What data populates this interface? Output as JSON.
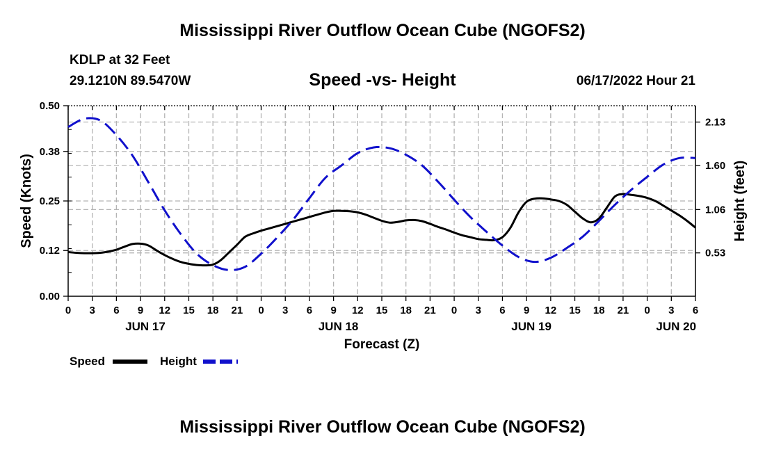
{
  "page": {
    "title": "Mississippi River Outflow Ocean Cube (NGOFS2)",
    "footer_title": "Mississippi River Outflow Ocean Cube (NGOFS2)",
    "station": "KDLP at 32 Feet",
    "coords": "29.1210N  89.5470W",
    "datetime": "06/17/2022 Hour 21"
  },
  "colors": {
    "speed": "#000000",
    "height": "#1010cc",
    "grid": "#b4b4b4"
  },
  "chart_data": {
    "type": "line",
    "title": "Speed -vs- Height",
    "xlabel": "Forecast (Z)",
    "ylabel_left": "Speed (Knots)",
    "ylabel_right": "Height (feet)",
    "x_range": [
      0,
      78
    ],
    "y_left_range": [
      0,
      0.5
    ],
    "y_right_range": [
      0,
      2.33
    ],
    "y_left_ticks": [
      0.0,
      0.12,
      0.25,
      0.38,
      0.5
    ],
    "y_left_tick_labels": [
      "0.00",
      "0.12",
      "0.25",
      "0.38",
      "0.50"
    ],
    "y_right_ticks": [
      0.53,
      1.06,
      1.6,
      2.13
    ],
    "y_right_tick_labels": [
      "0.53",
      "1.06",
      "1.60",
      "2.13"
    ],
    "x_ticks": [
      0,
      3,
      6,
      9,
      12,
      15,
      18,
      21,
      24,
      27,
      30,
      33,
      36,
      39,
      42,
      45,
      48,
      51,
      54,
      57,
      60,
      63,
      66,
      69,
      72,
      75,
      78
    ],
    "x_tick_labels": [
      "0",
      "3",
      "6",
      "9",
      "12",
      "15",
      "18",
      "21",
      "0",
      "3",
      "6",
      "9",
      "12",
      "15",
      "18",
      "21",
      "0",
      "3",
      "6",
      "9",
      "12",
      "15",
      "18",
      "21",
      "0",
      "3",
      "6"
    ],
    "day_labels": [
      {
        "x": 9.6,
        "label": "JUN 17"
      },
      {
        "x": 33.6,
        "label": "JUN 18"
      },
      {
        "x": 57.6,
        "label": "JUN 19"
      },
      {
        "x": 75.6,
        "label": "JUN 20"
      }
    ],
    "series": [
      {
        "name": "Speed",
        "axis": "left",
        "style": "solid",
        "x": [
          0,
          1,
          2,
          3,
          4,
          5,
          6,
          7,
          8,
          9,
          10,
          11,
          12,
          13,
          14,
          15,
          16,
          17,
          18,
          19,
          20,
          21,
          22,
          23,
          24,
          25,
          26,
          27,
          28,
          29,
          30,
          31,
          32,
          33,
          34,
          35,
          36,
          37,
          38,
          39,
          40,
          41,
          42,
          43,
          44,
          45,
          46,
          47,
          48,
          49,
          50,
          51,
          52,
          53,
          54,
          55,
          56,
          57,
          58,
          59,
          60,
          61,
          62,
          63,
          64,
          65,
          66,
          67,
          68,
          69,
          70,
          71,
          72,
          73,
          74,
          75,
          76,
          77,
          78
        ],
        "values": [
          0.116,
          0.114,
          0.113,
          0.113,
          0.114,
          0.117,
          0.122,
          0.13,
          0.137,
          0.138,
          0.133,
          0.12,
          0.108,
          0.098,
          0.09,
          0.085,
          0.082,
          0.081,
          0.083,
          0.095,
          0.115,
          0.135,
          0.156,
          0.165,
          0.172,
          0.178,
          0.184,
          0.19,
          0.196,
          0.202,
          0.208,
          0.214,
          0.22,
          0.224,
          0.224,
          0.223,
          0.22,
          0.214,
          0.206,
          0.198,
          0.193,
          0.195,
          0.199,
          0.2,
          0.197,
          0.19,
          0.182,
          0.175,
          0.167,
          0.16,
          0.155,
          0.15,
          0.148,
          0.147,
          0.155,
          0.18,
          0.22,
          0.248,
          0.256,
          0.257,
          0.254,
          0.25,
          0.24,
          0.222,
          0.204,
          0.194,
          0.204,
          0.233,
          0.262,
          0.268,
          0.266,
          0.263,
          0.258,
          0.25,
          0.238,
          0.225,
          0.212,
          0.197,
          0.18
        ]
      },
      {
        "name": "Height",
        "axis": "right",
        "style": "dashed",
        "x": [
          0,
          2,
          4,
          6,
          8,
          10,
          12,
          14,
          16,
          18,
          20,
          22,
          24,
          26,
          28,
          30,
          32,
          34,
          36,
          38,
          40,
          42,
          44,
          46,
          48,
          50,
          52,
          54,
          56,
          58,
          60,
          62,
          64,
          66,
          68,
          70,
          72,
          74,
          76,
          78
        ],
        "values": [
          2.07,
          2.17,
          2.15,
          1.97,
          1.72,
          1.39,
          1.05,
          0.76,
          0.52,
          0.38,
          0.32,
          0.36,
          0.52,
          0.72,
          0.94,
          1.2,
          1.45,
          1.6,
          1.75,
          1.82,
          1.81,
          1.73,
          1.6,
          1.4,
          1.18,
          0.97,
          0.79,
          0.62,
          0.48,
          0.42,
          0.47,
          0.59,
          0.73,
          0.92,
          1.12,
          1.3,
          1.46,
          1.61,
          1.69,
          1.69
        ]
      }
    ],
    "legend": [
      {
        "label": "Speed",
        "style": "solid"
      },
      {
        "label": "Height",
        "style": "dashed"
      }
    ]
  }
}
